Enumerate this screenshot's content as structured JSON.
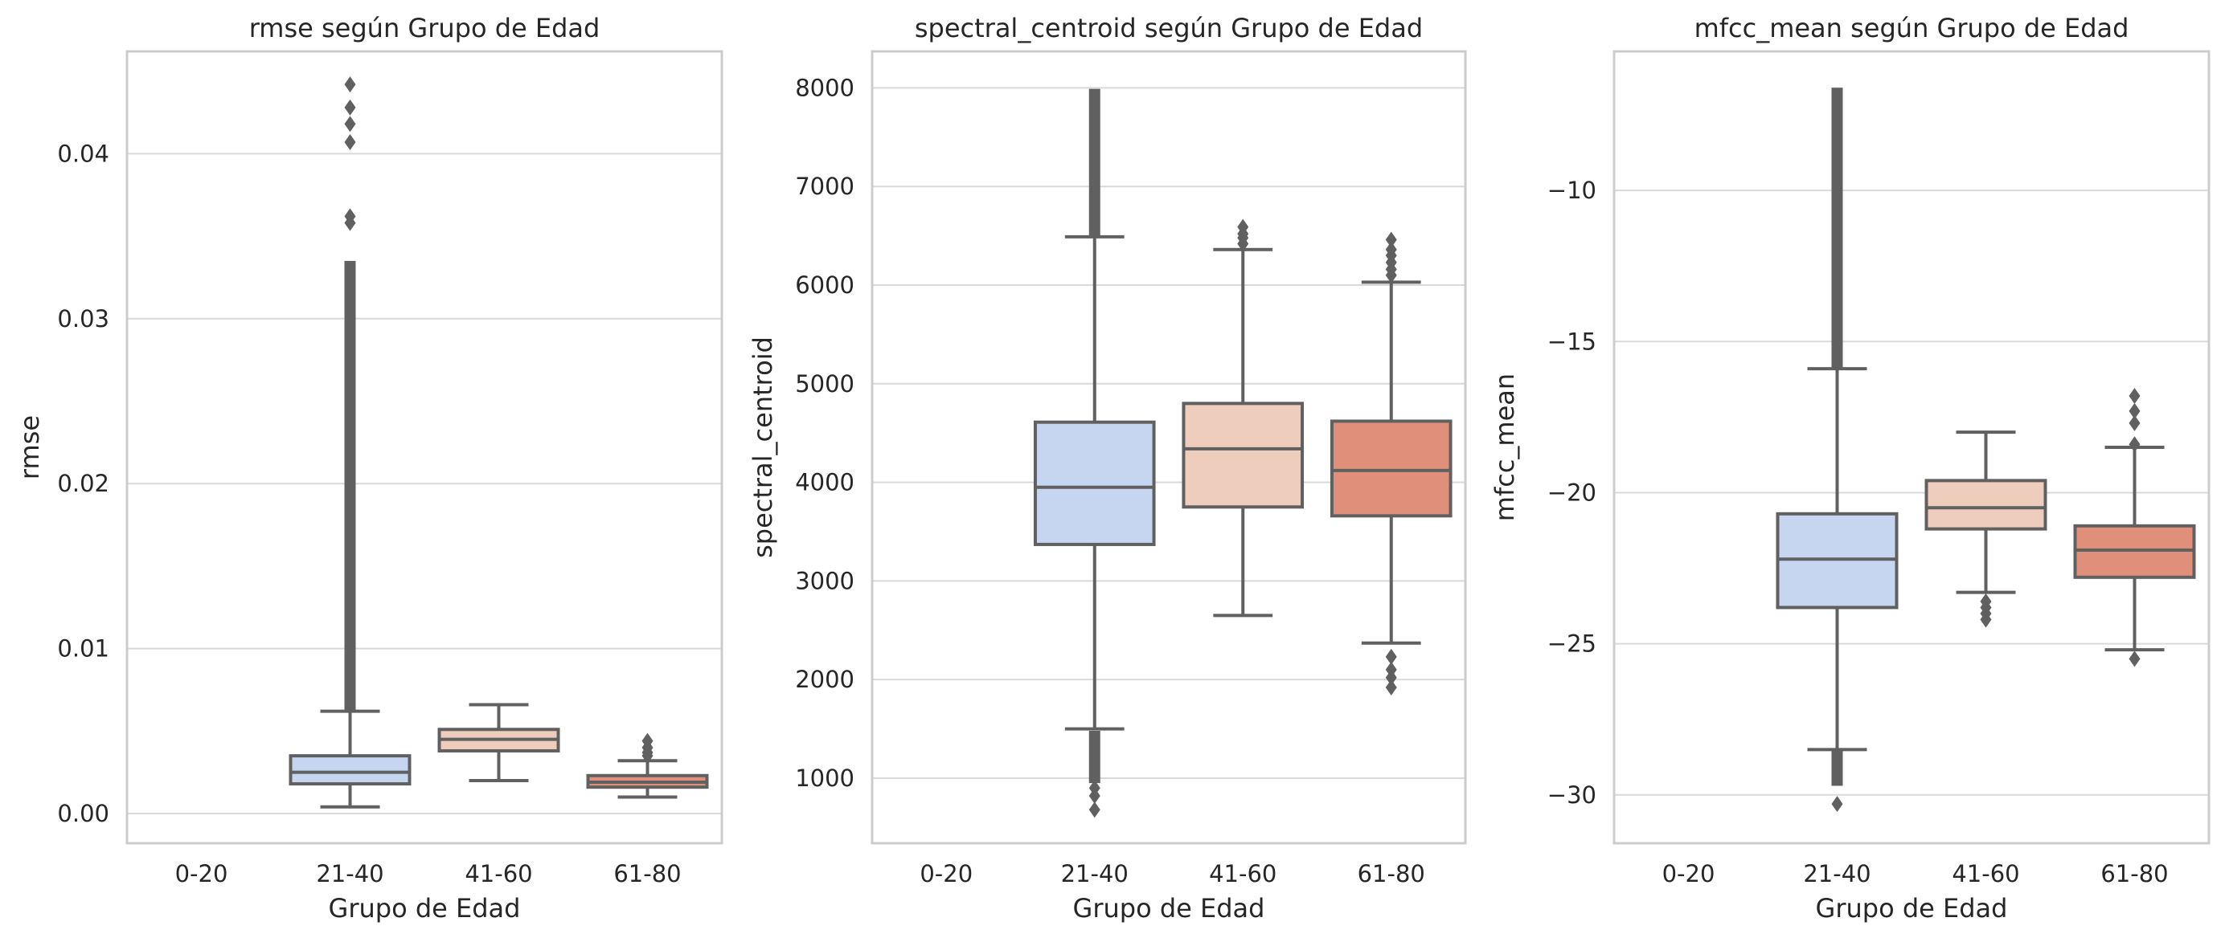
{
  "colors": {
    "group_fills": [
      "#c6d5f0",
      "#efcdbd",
      "#e0907a"
    ],
    "box_edge": "#606060",
    "grid": "#d9d9d9",
    "spine": "#cccccc"
  },
  "chart_data": [
    {
      "type": "box",
      "title": "rmse según Grupo de Edad",
      "xlabel": "Grupo de Edad",
      "ylabel": "rmse",
      "categories": [
        "0-20",
        "21-40",
        "41-60",
        "61-80"
      ],
      "ylim": [
        -0.0018,
        0.0462
      ],
      "yticks": [
        0.0,
        0.01,
        0.02,
        0.03,
        0.04
      ],
      "ytick_labels": [
        "0.00",
        "0.01",
        "0.02",
        "0.03",
        "0.04"
      ],
      "grid": true,
      "boxes": [
        null,
        {
          "whislo": 0.0004,
          "q1": 0.0018,
          "med": 0.0025,
          "q3": 0.0035,
          "whishi": 0.0062,
          "outliers_dense": [
            0.0062,
            0.0335
          ],
          "outliers": [
            0.0358,
            0.0362,
            0.0407,
            0.0418,
            0.0428,
            0.0442
          ]
        },
        {
          "whislo": 0.002,
          "q1": 0.0038,
          "med": 0.0045,
          "q3": 0.0051,
          "whishi": 0.0066,
          "outliers": []
        },
        {
          "whislo": 0.001,
          "q1": 0.0016,
          "med": 0.0019,
          "q3": 0.0023,
          "whishi": 0.0032,
          "outliers": [
            0.0035,
            0.0037,
            0.004,
            0.0044
          ]
        }
      ]
    },
    {
      "type": "box",
      "title": "spectral_centroid según Grupo de Edad",
      "xlabel": "Grupo de Edad",
      "ylabel": "spectral_centroid",
      "categories": [
        "0-20",
        "21-40",
        "41-60",
        "61-80"
      ],
      "ylim": [
        340,
        8370
      ],
      "yticks": [
        1000,
        2000,
        3000,
        4000,
        5000,
        6000,
        7000,
        8000
      ],
      "ytick_labels": [
        "1000",
        "2000",
        "3000",
        "4000",
        "5000",
        "6000",
        "7000",
        "8000"
      ],
      "grid": true,
      "boxes": [
        null,
        {
          "whislo": 1500,
          "q1": 3370,
          "med": 3950,
          "q3": 4610,
          "whishi": 6490,
          "outliers_dense": [
            6490,
            7990
          ],
          "outliers_dense_low": [
            950,
            1480
          ],
          "outliers": [
            680,
            820,
            900
          ]
        },
        {
          "whislo": 2650,
          "q1": 3750,
          "med": 4340,
          "q3": 4800,
          "whishi": 6360,
          "outliers": [
            6420,
            6480,
            6520,
            6590
          ]
        },
        {
          "whislo": 2370,
          "q1": 3660,
          "med": 4120,
          "q3": 4620,
          "whishi": 6030,
          "outliers": [
            6100,
            6160,
            6230,
            6300,
            6360,
            6460,
            1920,
            2020,
            2100,
            2230
          ]
        }
      ]
    },
    {
      "type": "box",
      "title": "mfcc_mean según Grupo de Edad",
      "xlabel": "Grupo de Edad",
      "ylabel": "mfcc_mean",
      "categories": [
        "0-20",
        "21-40",
        "41-60",
        "61-80"
      ],
      "ylim": [
        -31.6,
        -5.4
      ],
      "yticks": [
        -30,
        -25,
        -20,
        -15,
        -10
      ],
      "ytick_labels": [
        "−30",
        "−25",
        "−20",
        "−15",
        "−10"
      ],
      "grid": true,
      "boxes": [
        null,
        {
          "whislo": -28.5,
          "q1": -23.8,
          "med": -22.2,
          "q3": -20.7,
          "whishi": -15.9,
          "outliers_dense": [
            -15.9,
            -6.6
          ],
          "outliers_dense_low": [
            -29.7,
            -28.5
          ],
          "outliers": [
            -30.3
          ]
        },
        {
          "whislo": -23.3,
          "q1": -21.2,
          "med": -20.5,
          "q3": -19.6,
          "whishi": -18.0,
          "outliers": [
            -23.6,
            -23.8,
            -24.0,
            -24.2
          ]
        },
        {
          "whislo": -25.2,
          "q1": -22.8,
          "med": -21.9,
          "q3": -21.1,
          "whishi": -18.5,
          "outliers": [
            -18.4,
            -17.7,
            -17.3,
            -16.8,
            -25.5
          ]
        }
      ]
    }
  ]
}
